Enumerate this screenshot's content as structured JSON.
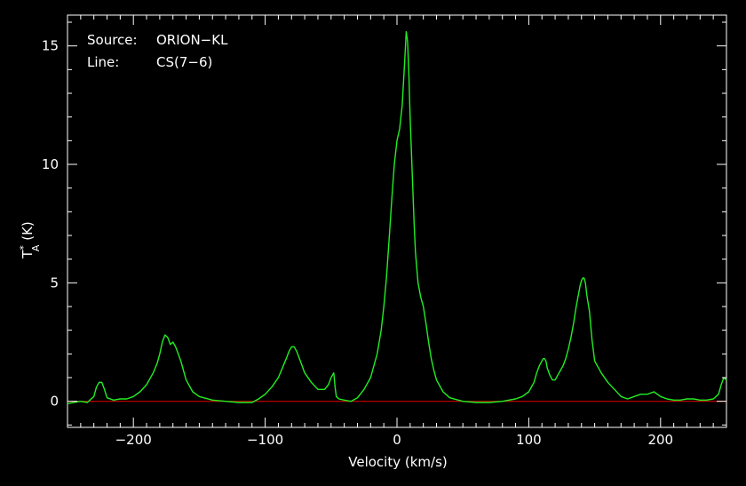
{
  "chart_data": {
    "type": "line",
    "title": "",
    "xlabel": "Velocity (km/s)",
    "ylabel": {
      "main": "T",
      "sup": "*",
      "sub": "A",
      "unit": " (K)"
    },
    "xlim": [
      -250,
      250
    ],
    "ylim": [
      -1.1,
      16.3
    ],
    "xticks": [
      -200,
      -100,
      0,
      100,
      200
    ],
    "xtick_labels": [
      "−200",
      "−100",
      "0",
      "100",
      "200"
    ],
    "yticks": [
      0,
      5,
      10,
      15
    ],
    "ytick_labels": [
      "0",
      "5",
      "10",
      "15"
    ],
    "grid": false,
    "background": "#000000",
    "line_color": "#22ee22",
    "baseline_color": "#cc0000",
    "baseline_value": 0,
    "annotations": {
      "source_label": "Source:",
      "source_value": "ORION−KL",
      "line_label": "Line:",
      "line_value": "CS(7−6)"
    },
    "series": [
      {
        "x": [
          -250,
          -240,
          -235,
          -230,
          -228,
          -226,
          -224,
          -222,
          -220,
          -215,
          -210,
          -205,
          -200,
          -195,
          -190,
          -185,
          -182,
          -180,
          -178,
          -176,
          -174,
          -172,
          -170,
          -168,
          -166,
          -164,
          -162,
          -160,
          -155,
          -150,
          -140,
          -130,
          -120,
          -110,
          -105,
          -100,
          -95,
          -90,
          -87,
          -84,
          -82,
          -80,
          -78,
          -76,
          -74,
          -72,
          -70,
          -65,
          -60,
          -55,
          -52,
          -50,
          -48,
          -47,
          -46,
          -44,
          -40,
          -35,
          -30,
          -25,
          -20,
          -15,
          -12,
          -10,
          -8,
          -6,
          -4,
          -2,
          0,
          2,
          4,
          6,
          7,
          8,
          9,
          10,
          11,
          12,
          13,
          14,
          16,
          18,
          20,
          22,
          24,
          26,
          28,
          30,
          35,
          40,
          50,
          60,
          70,
          80,
          90,
          95,
          100,
          104,
          106,
          108,
          110,
          111,
          112,
          113,
          114,
          116,
          118,
          120,
          122,
          124,
          126,
          128,
          130,
          132,
          134,
          136,
          138,
          139,
          140,
          141,
          142,
          143,
          144,
          146,
          148,
          150,
          155,
          160,
          165,
          170,
          175,
          180,
          185,
          190,
          195,
          200,
          205,
          210,
          215,
          220,
          225,
          230,
          235,
          240,
          244,
          246,
          248,
          250
        ],
        "y": [
          -0.1,
          0.0,
          -0.05,
          0.2,
          0.6,
          0.8,
          0.8,
          0.5,
          0.15,
          0.05,
          0.1,
          0.1,
          0.2,
          0.4,
          0.7,
          1.2,
          1.6,
          2.0,
          2.5,
          2.8,
          2.7,
          2.4,
          2.5,
          2.3,
          2.0,
          1.7,
          1.3,
          0.9,
          0.4,
          0.2,
          0.05,
          0.0,
          -0.05,
          -0.05,
          0.1,
          0.3,
          0.6,
          1.0,
          1.4,
          1.8,
          2.1,
          2.3,
          2.3,
          2.1,
          1.8,
          1.5,
          1.2,
          0.8,
          0.5,
          0.5,
          0.7,
          1.0,
          1.2,
          0.6,
          0.2,
          0.1,
          0.05,
          0.0,
          0.15,
          0.5,
          1.0,
          2.0,
          3.0,
          4.0,
          5.2,
          6.8,
          8.5,
          10.0,
          11.0,
          11.5,
          12.5,
          14.5,
          15.6,
          15.2,
          13.8,
          12.0,
          10.5,
          9.0,
          7.5,
          6.3,
          5.0,
          4.4,
          4.0,
          3.3,
          2.5,
          1.8,
          1.3,
          0.9,
          0.4,
          0.15,
          0.0,
          -0.05,
          -0.05,
          0.0,
          0.1,
          0.2,
          0.4,
          0.8,
          1.2,
          1.5,
          1.7,
          1.8,
          1.8,
          1.7,
          1.4,
          1.1,
          0.9,
          0.9,
          1.1,
          1.3,
          1.5,
          1.8,
          2.2,
          2.7,
          3.3,
          4.0,
          4.6,
          4.9,
          5.1,
          5.2,
          5.2,
          5.0,
          4.5,
          3.8,
          2.6,
          1.7,
          1.2,
          0.8,
          0.5,
          0.2,
          0.1,
          0.2,
          0.3,
          0.3,
          0.4,
          0.2,
          0.1,
          0.05,
          0.05,
          0.1,
          0.1,
          0.05,
          0.05,
          0.1,
          0.3,
          0.7,
          1.0,
          0.9
        ]
      }
    ]
  }
}
